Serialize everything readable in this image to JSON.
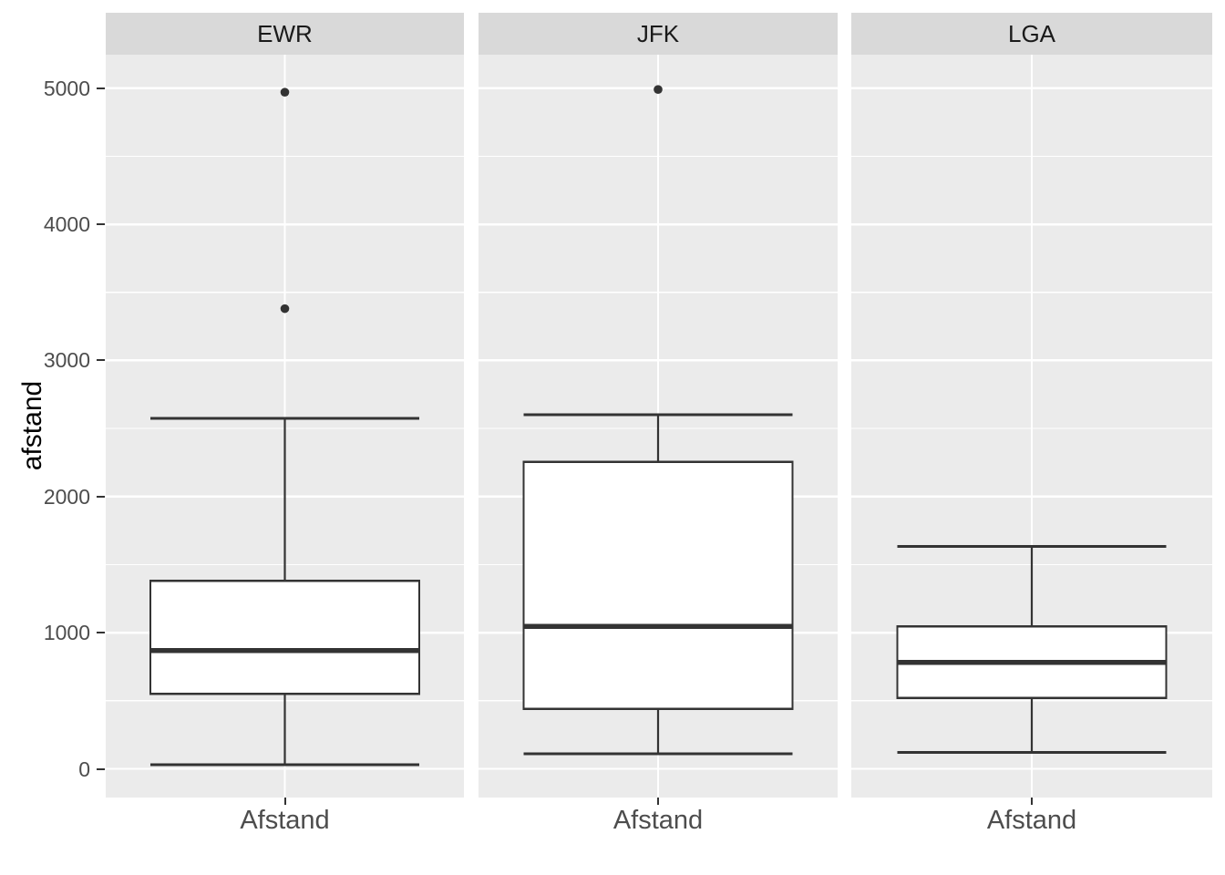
{
  "chart_data": {
    "type": "boxplot",
    "title": "",
    "ylabel": "afstand",
    "xlabel": "",
    "x_category_label": "Afstand",
    "ylim": [
      -210,
      5250
    ],
    "yticks": [
      0,
      1000,
      2000,
      3000,
      4000,
      5000
    ],
    "ytick_labels": [
      "0",
      "1000",
      "2000",
      "3000",
      "4000",
      "5000"
    ],
    "yticks_minor": [
      500,
      1500,
      2500,
      3500,
      4500
    ],
    "grid": "horizontal white major and minor gridlines plus one vertical major gridline per panel, on grey panel background",
    "legend": "none",
    "facets": [
      {
        "label": "EWR",
        "x_tick_label": "Afstand",
        "whisker_low": 30,
        "q1": 550,
        "median": 870,
        "q3": 1380,
        "whisker_high": 2575,
        "outliers": [
          3380,
          4970
        ]
      },
      {
        "label": "JFK",
        "x_tick_label": "Afstand",
        "whisker_low": 110,
        "q1": 440,
        "median": 1045,
        "q3": 2255,
        "whisker_high": 2600,
        "outliers": [
          4990
        ]
      },
      {
        "label": "LGA",
        "x_tick_label": "Afstand",
        "whisker_low": 120,
        "q1": 520,
        "median": 780,
        "q3": 1045,
        "whisker_high": 1635,
        "outliers": []
      }
    ],
    "colors": {
      "panel_bg": "#EBEBEB",
      "strip_bg": "#D9D9D9",
      "grid": "#FFFFFF",
      "box_stroke": "#333333",
      "box_fill": "#FFFFFF",
      "axis_text": "#4D4D4D",
      "strip_text": "#1A1A1A",
      "axis_title": "#000000",
      "tick_mark": "#333333"
    }
  }
}
